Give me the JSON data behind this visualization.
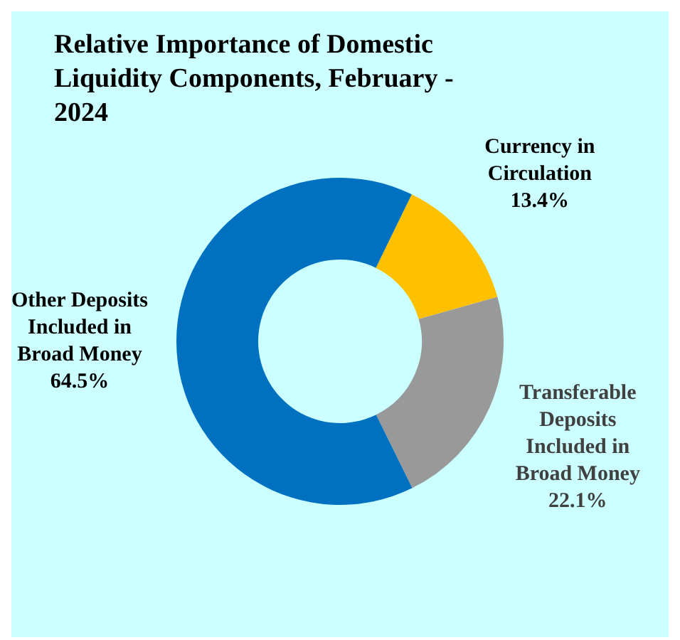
{
  "chart_data": {
    "type": "donut",
    "title": "Relative Importance of Domestic Liquidity Components, February - 2024",
    "categories": [
      "Currency in Circulation",
      "Transferable Deposits Included in Broad Money",
      "Other Deposits Included in Broad Money"
    ],
    "values": [
      13.4,
      22.1,
      64.5
    ],
    "colors": [
      "#ffc000",
      "#999999",
      "#0070c0"
    ],
    "value_labels": [
      "13.4%",
      "22.1%",
      "64.5%"
    ],
    "legend": false
  }
}
